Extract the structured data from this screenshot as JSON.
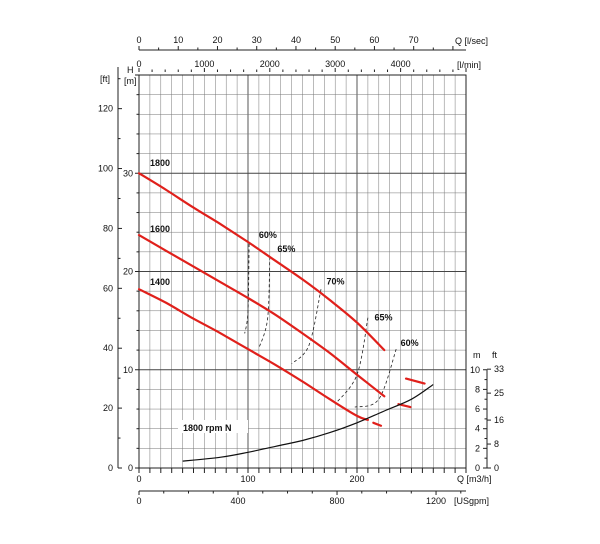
{
  "chart_data": {
    "type": "line",
    "top_axis_1": {
      "label": "Q [l/sec]",
      "ticks": [
        "0",
        "10",
        "20",
        "30",
        "40",
        "50",
        "60",
        "70"
      ],
      "values": [
        0,
        10,
        20,
        30,
        40,
        50,
        60,
        70
      ]
    },
    "top_axis_2": {
      "label": "[l/min]",
      "ticks": [
        "0",
        "1000",
        "2000",
        "3000",
        "4000"
      ],
      "values": [
        0,
        1000,
        2000,
        3000,
        4000
      ]
    },
    "bottom_axis_1": {
      "label": "Q [m3/h]",
      "ticks": [
        "0",
        "100",
        "200"
      ],
      "values": [
        0,
        100,
        200
      ]
    },
    "bottom_axis_2": {
      "label": "[USgpm]",
      "ticks": [
        "0",
        "400",
        "800",
        "1200"
      ],
      "values": [
        0,
        400,
        800,
        1200
      ]
    },
    "left_axis_ft": {
      "unit": "[ft]",
      "ticks": [
        "0",
        "20",
        "40",
        "60",
        "80",
        "100",
        "120"
      ],
      "values": [
        0,
        20,
        40,
        60,
        80,
        100,
        120
      ]
    },
    "left_axis_m": {
      "title": "H",
      "unit": "[m]",
      "ticks": [
        "0",
        "10",
        "20",
        "30"
      ],
      "values": [
        0,
        10,
        20,
        30
      ]
    },
    "npsh_axis_m": {
      "unit": "m",
      "ticks": [
        "0",
        "2",
        "4",
        "6",
        "8",
        "10"
      ],
      "values": [
        0,
        2,
        4,
        6,
        8,
        10
      ]
    },
    "npsh_axis_ft": {
      "unit": "ft",
      "ticks": [
        "0",
        "8",
        "16",
        "25",
        "33"
      ],
      "values": [
        0,
        8,
        16,
        25,
        33
      ]
    },
    "xlim": [
      0,
      300
    ],
    "ylim": [
      0,
      40
    ],
    "series": [
      {
        "name": "1800",
        "x": [
          0,
          25,
          50,
          75,
          100,
          125,
          150,
          175,
          200,
          225,
          245,
          262
        ],
        "y": [
          30,
          28.3,
          26.5,
          24.8,
          23.0,
          21.1,
          19.2,
          17.1,
          14.8,
          12.0,
          9.1,
          8.6
        ]
      },
      {
        "name": "1600",
        "x": [
          0,
          25,
          50,
          75,
          100,
          125,
          150,
          175,
          200,
          225,
          238,
          249
        ],
        "y": [
          23.7,
          22.1,
          20.5,
          18.9,
          17.3,
          15.6,
          13.7,
          11.7,
          9.5,
          7.3,
          6.5,
          6.2
        ]
      },
      {
        "name": "1400",
        "x": [
          0,
          25,
          50,
          75,
          100,
          125,
          150,
          175,
          200,
          210,
          215,
          222
        ],
        "y": [
          18.2,
          16.8,
          15.2,
          13.7,
          12.1,
          10.5,
          8.8,
          7.0,
          5.3,
          4.9,
          4.6,
          4.3
        ]
      }
    ],
    "npsh": {
      "label": "1800 rpm N",
      "x": [
        40,
        75,
        100,
        125,
        150,
        175,
        200,
        225,
        250,
        270
      ],
      "y_m": [
        0.7,
        1.1,
        1.6,
        2.2,
        2.8,
        3.6,
        4.6,
        5.8,
        7.0,
        8.5
      ]
    },
    "efficiency_labels": [
      {
        "label": "60%",
        "x": 110,
        "y": 23.4
      },
      {
        "label": "65%",
        "x": 127,
        "y": 22.0
      },
      {
        "label": "70%",
        "x": 172,
        "y": 18.7
      },
      {
        "label": "65%",
        "x": 216,
        "y": 15.0
      },
      {
        "label": "60%",
        "x": 240,
        "y": 12.4
      }
    ],
    "efficiency_contours": [
      {
        "label": "60%",
        "x": [
          101,
          100,
          97
        ],
        "y": [
          22.8,
          16.0,
          13.7
        ]
      },
      {
        "label": "65%",
        "x": [
          120,
          118,
          110
        ],
        "y": [
          21.5,
          15.2,
          12.2
        ]
      },
      {
        "label": "70%",
        "x": [
          167,
          156,
          140
        ],
        "y": [
          18.2,
          12.5,
          10.6
        ]
      },
      {
        "label": "65%",
        "x": [
          210,
          200,
          180
        ],
        "y": [
          15.3,
          9.5,
          6.5
        ]
      },
      {
        "label": "60%",
        "x": [
          236,
          220,
          198
        ],
        "y": [
          12.1,
          7.0,
          6.2
        ]
      }
    ]
  }
}
